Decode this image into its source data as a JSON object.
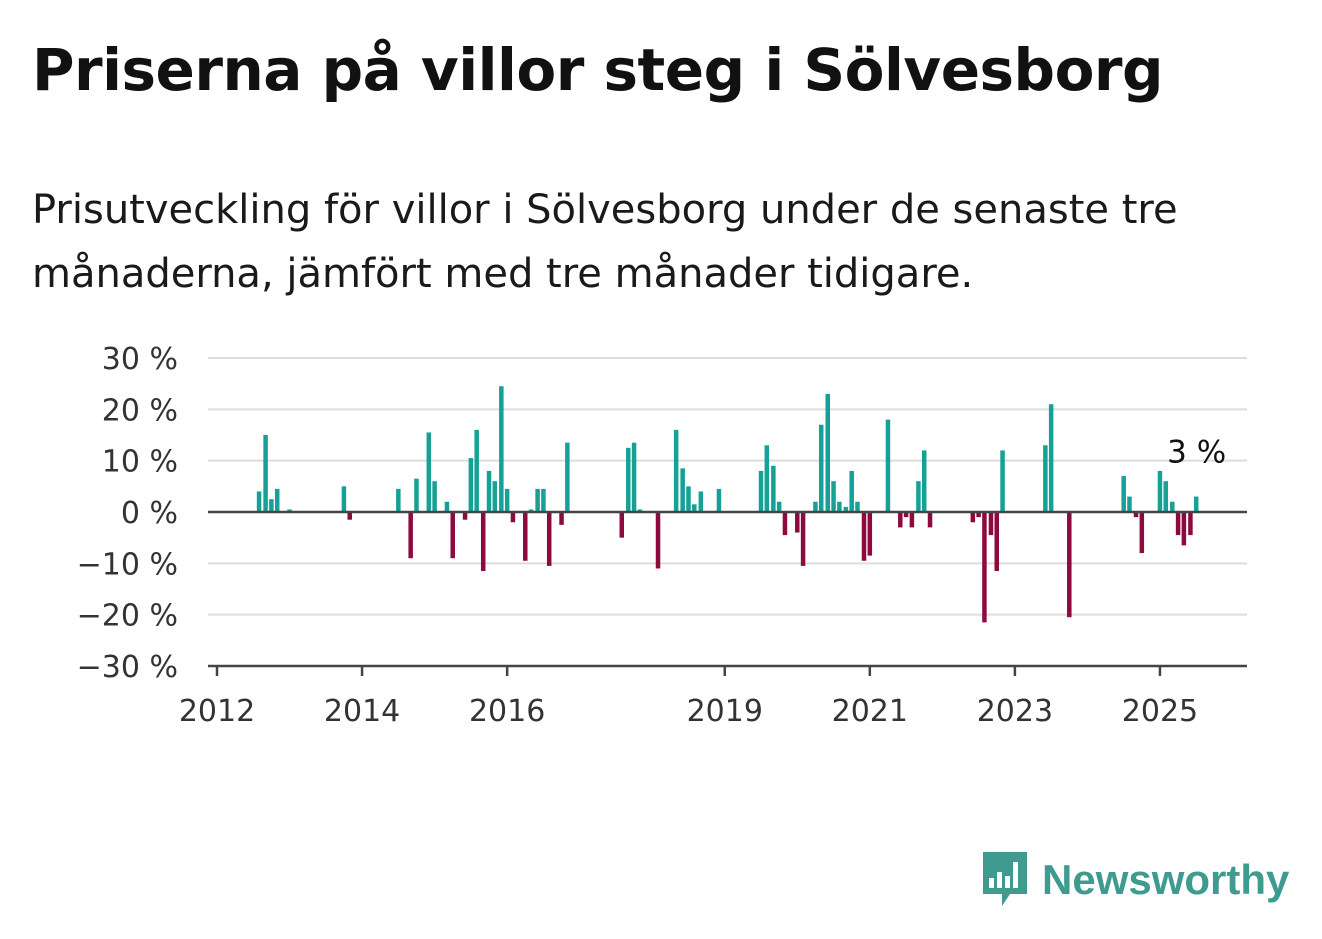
{
  "title": "Priserna på villor steg i Sölvesborg",
  "subtitle": "Prisutveckling för villor i Sölvesborg under de senaste tre månaderna, jämfört med tre månader tidigare.",
  "brand": "Newsworthy",
  "colors": {
    "positive": "#16a196",
    "negative": "#8d0a3e",
    "grid": "#dddddd",
    "axis": "#444444",
    "brand": "#3f9b90"
  },
  "chart_data": {
    "type": "bar",
    "title": "Priserna på villor steg i Sölvesborg",
    "xlabel": "",
    "ylabel": "",
    "ylim": [
      -30,
      30
    ],
    "xlim": [
      2012.0,
      2026.2
    ],
    "grid": true,
    "y_ticks": [
      30,
      20,
      10,
      0,
      -10,
      -20,
      -30
    ],
    "y_tick_labels": [
      "30 %",
      "20 %",
      "10 %",
      "0 %",
      "−10 %",
      "−20 %",
      "−30 %"
    ],
    "x_ticks": [
      2012,
      2014,
      2016,
      2019,
      2021,
      2023,
      2025
    ],
    "x_tick_labels": [
      "2012",
      "2014",
      "2016",
      "2019",
      "2021",
      "2023",
      "2025"
    ],
    "annotation": {
      "text": "3 %",
      "x": 2025.5,
      "value": 3
    },
    "x": [
      2012.58,
      2012.67,
      2012.75,
      2012.83,
      2013.0,
      2013.75,
      2013.83,
      2014.5,
      2014.67,
      2014.75,
      2014.92,
      2015.0,
      2015.17,
      2015.25,
      2015.42,
      2015.5,
      2015.58,
      2015.67,
      2015.75,
      2015.83,
      2015.92,
      2016.0,
      2016.08,
      2016.25,
      2016.33,
      2016.42,
      2016.5,
      2016.58,
      2016.75,
      2016.83,
      2017.58,
      2017.67,
      2017.75,
      2017.83,
      2018.08,
      2018.33,
      2018.42,
      2018.5,
      2018.58,
      2018.67,
      2018.92,
      2019.5,
      2019.58,
      2019.67,
      2019.75,
      2019.83,
      2020.0,
      2020.08,
      2020.25,
      2020.33,
      2020.42,
      2020.5,
      2020.58,
      2020.67,
      2020.75,
      2020.83,
      2020.92,
      2021.0,
      2021.25,
      2021.42,
      2021.5,
      2021.58,
      2021.67,
      2021.75,
      2021.83,
      2022.42,
      2022.5,
      2022.58,
      2022.67,
      2022.75,
      2022.83,
      2023.42,
      2023.5,
      2023.75,
      2024.5,
      2024.58,
      2024.67,
      2024.75,
      2025.0,
      2025.08,
      2025.17,
      2025.25,
      2025.33,
      2025.42,
      2025.5
    ],
    "values": [
      4,
      15,
      2.5,
      4.5,
      0.5,
      5,
      -1.5,
      4.5,
      -9,
      6.5,
      15.5,
      6,
      2,
      -9,
      -1.5,
      10.5,
      16,
      -11.5,
      8,
      6,
      24.5,
      4.5,
      -2,
      -9.5,
      0.5,
      4.5,
      4.5,
      -10.5,
      -2.5,
      13.5,
      -5,
      12.5,
      13.5,
      0.5,
      -11,
      16,
      8.5,
      5,
      1.5,
      4,
      4.5,
      8,
      13,
      9,
      2,
      -4.5,
      -4,
      -10.5,
      2,
      17,
      23,
      6,
      2,
      1,
      8,
      2,
      -9.5,
      -8.5,
      18,
      -3,
      -1,
      -3,
      6,
      12,
      -3,
      -2,
      -1,
      -21.5,
      -4.5,
      -11.5,
      12,
      13,
      21,
      -20.5,
      7,
      3,
      -1,
      -8,
      8,
      6,
      2,
      -4.5,
      -6.5,
      -4.5,
      3
    ]
  }
}
